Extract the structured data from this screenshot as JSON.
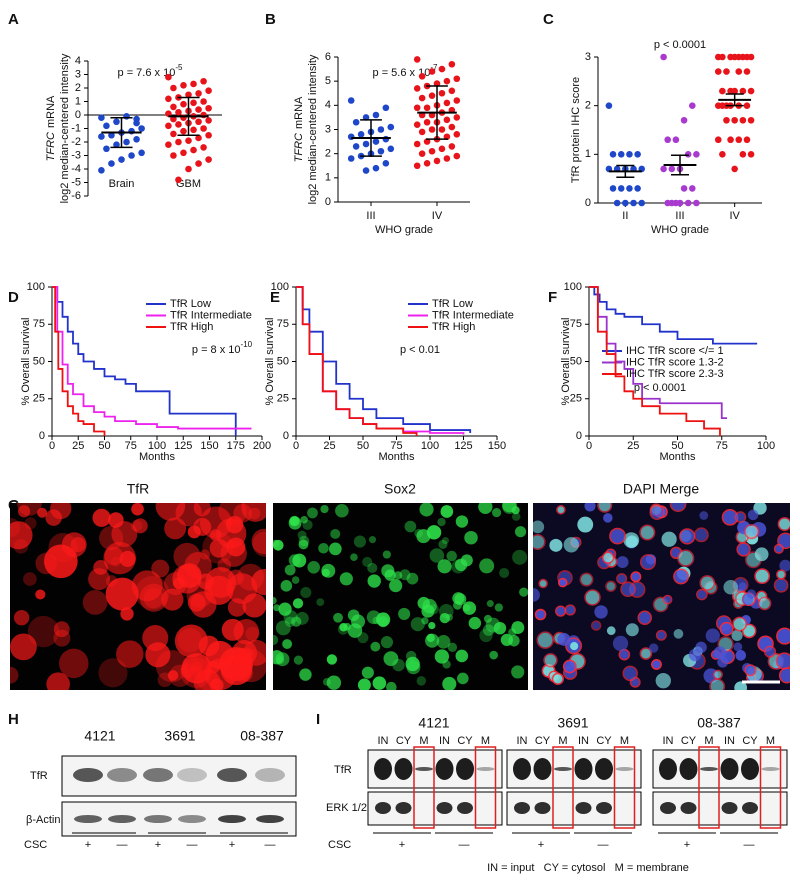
{
  "chart_data": [
    {
      "type": "dot",
      "label": "A",
      "annotation": {
        "text": "p = 7.6 x 10",
        "superscript": "-5"
      },
      "ylabel_italic": "TFRC",
      "ylabel": [
        "mRNA",
        "log2 median-centered intensity"
      ],
      "ylim": [
        -6,
        4
      ],
      "yticks": [
        -6,
        -5,
        -4,
        -3,
        -2,
        -1,
        0,
        1,
        2,
        3,
        4
      ],
      "zero_line": true,
      "groups": [
        {
          "name": "Brain",
          "color": "#1f47c9",
          "values": [
            -0.2,
            -0.3,
            -0.1,
            -0.5,
            -0.8,
            -1.0,
            -1.2,
            -1.3,
            -1.5,
            -1.6,
            -1.8,
            -2.0,
            -2.2,
            -2.5,
            -2.8,
            -3.0,
            -3.3,
            -3.6,
            -4.1,
            -0.6
          ],
          "mean": -1.3,
          "error": 1.1
        },
        {
          "name": "GBM",
          "color": "#e8141b",
          "values": [
            2.8,
            2.5,
            2.3,
            2.2,
            2.0,
            1.8,
            1.6,
            1.5,
            1.3,
            1.2,
            1.0,
            0.9,
            0.8,
            0.6,
            0.5,
            0.4,
            0.3,
            0.2,
            0.1,
            0.0,
            -0.1,
            -0.2,
            -0.3,
            -0.4,
            -0.5,
            -0.6,
            -0.7,
            -0.8,
            -1.0,
            -1.1,
            -1.2,
            -1.4,
            -1.5,
            -1.7,
            -1.9,
            -2.0,
            -2.2,
            -2.4,
            -2.6,
            -2.8,
            -3.0,
            -3.3,
            -3.6,
            -4.0,
            -4.8
          ],
          "mean": -0.1,
          "error": 1.4
        }
      ]
    },
    {
      "type": "dot",
      "label": "B",
      "annotation": {
        "text": "p = 5.6 x 10",
        "superscript": "-7"
      },
      "ylabel_italic": "TFRC",
      "ylabel": [
        "mRNA",
        "log2 median-centered intensity"
      ],
      "xlabel": "WHO grade",
      "ylim": [
        0,
        6
      ],
      "yticks": [
        0,
        1,
        2,
        3,
        4,
        5,
        6
      ],
      "groups": [
        {
          "name": "III",
          "color": "#1f47c9",
          "values": [
            4.2,
            3.9,
            3.6,
            3.5,
            3.3,
            3.1,
            3.0,
            2.9,
            2.8,
            2.7,
            2.6,
            2.5,
            2.4,
            2.3,
            2.2,
            2.1,
            2.0,
            1.9,
            1.8,
            1.6,
            1.4,
            1.3
          ],
          "mean": 2.65,
          "error": 0.75
        },
        {
          "name": "IV",
          "color": "#e8141b",
          "values": [
            5.9,
            5.7,
            5.5,
            5.4,
            5.2,
            5.1,
            5.0,
            4.9,
            4.8,
            4.7,
            4.6,
            4.5,
            4.4,
            4.3,
            4.2,
            4.1,
            4.0,
            3.9,
            3.9,
            3.8,
            3.7,
            3.6,
            3.6,
            3.5,
            3.4,
            3.3,
            3.3,
            3.2,
            3.1,
            3.0,
            3.0,
            2.9,
            2.8,
            2.7,
            2.6,
            2.5,
            2.4,
            2.3,
            2.2,
            2.1,
            2.0,
            1.9,
            1.8,
            1.7,
            1.6,
            1.5
          ],
          "mean": 3.7,
          "error": 1.1
        }
      ]
    },
    {
      "type": "dot",
      "label": "C",
      "annotation": {
        "text": "p < 0.0001"
      },
      "ylabel": [
        "TfR protein IHC score"
      ],
      "xlabel": "WHO grade",
      "ylim": [
        0,
        3
      ],
      "yticks": [
        0,
        1,
        2,
        3
      ],
      "groups": [
        {
          "name": "II",
          "color": "#1f47c9",
          "values": [
            2,
            1,
            1,
            1,
            1,
            0.7,
            0.7,
            0.7,
            0.7,
            0.7,
            0.3,
            0.3,
            0.3,
            0.3,
            0,
            0,
            0,
            0
          ],
          "mean": 0.65,
          "error": 0.12
        },
        {
          "name": "III",
          "color": "#a83ad0",
          "values": [
            3,
            2,
            1.7,
            1.3,
            1.3,
            1,
            1,
            0.7,
            0.7,
            0.7,
            0.3,
            0.3,
            0,
            0,
            0,
            0,
            0,
            0
          ],
          "mean": 0.78,
          "error": 0.2
        },
        {
          "name": "IV",
          "color": "#e8141b",
          "values": [
            3,
            3,
            3,
            3,
            3,
            3,
            3,
            3,
            2.7,
            2.7,
            2.7,
            2.7,
            2.3,
            2.3,
            2.3,
            2.3,
            2.3,
            2,
            2,
            2,
            2,
            2,
            2,
            1.7,
            1.7,
            1.7,
            1.7,
            1.3,
            1.3,
            1.3,
            1.3,
            1,
            1,
            1,
            0.7
          ],
          "mean": 2.12,
          "error": 0.12
        }
      ]
    },
    {
      "type": "survival",
      "label": "D",
      "annotation": {
        "text": "p = 8 x 10",
        "superscript": "-10"
      },
      "xlabel": "Months",
      "ylabel": [
        "% Overall survival"
      ],
      "xlim": [
        0,
        200
      ],
      "xticks": [
        0,
        25,
        50,
        75,
        100,
        125,
        150,
        175,
        200
      ],
      "ylim": [
        0,
        100
      ],
      "yticks": [
        0,
        25,
        50,
        75,
        100
      ],
      "series": [
        {
          "name": "TfR Low",
          "color": "#2233cc",
          "x": [
            0,
            5,
            10,
            15,
            20,
            25,
            30,
            40,
            50,
            60,
            70,
            80,
            100,
            112,
            175,
            175
          ],
          "values": [
            100,
            90,
            80,
            70,
            62,
            55,
            50,
            45,
            40,
            38,
            35,
            30,
            30,
            15,
            15,
            0
          ]
        },
        {
          "name": "TfR Intermediate",
          "color": "#ee22ee",
          "x": [
            0,
            5,
            10,
            15,
            20,
            30,
            40,
            50,
            60,
            80,
            100,
            120,
            150,
            175,
            190
          ],
          "values": [
            100,
            70,
            48,
            35,
            28,
            20,
            16,
            13,
            10,
            8,
            6,
            5,
            5,
            5,
            5
          ]
        },
        {
          "name": "TfR High",
          "color": "#ee1111",
          "x": [
            0,
            3,
            6,
            10,
            15,
            20,
            25,
            30,
            40,
            50
          ],
          "values": [
            100,
            70,
            45,
            30,
            20,
            15,
            10,
            8,
            3,
            0
          ]
        }
      ]
    },
    {
      "type": "survival",
      "label": "E",
      "annotation": {
        "text": "p < 0.01"
      },
      "xlabel": "Months",
      "ylabel": [
        "% Overall survival"
      ],
      "xlim": [
        0,
        150
      ],
      "xticks": [
        0,
        25,
        50,
        75,
        100,
        125,
        150
      ],
      "ylim": [
        0,
        100
      ],
      "yticks": [
        0,
        25,
        50,
        75,
        100
      ],
      "series": [
        {
          "name": "TfR Low",
          "color": "#2233cc",
          "x": [
            0,
            5,
            10,
            20,
            30,
            40,
            50,
            60,
            80,
            100,
            130
          ],
          "values": [
            100,
            85,
            70,
            50,
            35,
            25,
            18,
            12,
            8,
            4,
            2
          ]
        },
        {
          "name": "TfR Intermediate",
          "color": "#ee22ee",
          "x": [
            0,
            5,
            10,
            20,
            30,
            40,
            50,
            60,
            80,
            100,
            125
          ],
          "values": [
            100,
            75,
            55,
            30,
            18,
            12,
            8,
            5,
            3,
            2,
            1
          ]
        },
        {
          "name": "TfR High",
          "color": "#ee1111",
          "x": [
            0,
            5,
            10,
            20,
            30,
            40,
            50,
            60,
            80,
            90
          ],
          "values": [
            100,
            75,
            55,
            30,
            18,
            12,
            8,
            5,
            2,
            0
          ]
        }
      ]
    },
    {
      "type": "survival",
      "label": "F",
      "annotation": {
        "text": "p < 0.0001"
      },
      "xlabel": "Months",
      "ylabel": [
        "% Overall survival"
      ],
      "xlim": [
        0,
        100
      ],
      "xticks": [
        0,
        25,
        50,
        75,
        100
      ],
      "ylim": [
        0,
        100
      ],
      "yticks": [
        0,
        25,
        50,
        75,
        100
      ],
      "series": [
        {
          "name": "IHC TfR score </= 1",
          "color": "#2233cc",
          "x": [
            0,
            3,
            6,
            10,
            15,
            20,
            30,
            40,
            50,
            60,
            70,
            95
          ],
          "values": [
            100,
            95,
            90,
            85,
            82,
            80,
            75,
            70,
            65,
            65,
            62,
            62
          ]
        },
        {
          "name": "IHC TfR score 1.3-2",
          "color": "#9933cc",
          "x": [
            0,
            5,
            10,
            15,
            20,
            25,
            30,
            40,
            60,
            75,
            78
          ],
          "values": [
            100,
            80,
            62,
            50,
            45,
            35,
            25,
            22,
            22,
            12,
            12
          ]
        },
        {
          "name": "IHC TfR score 2.3-3",
          "color": "#ee1111",
          "x": [
            0,
            5,
            10,
            15,
            20,
            25,
            30,
            40,
            55,
            65,
            72,
            74
          ],
          "values": [
            100,
            70,
            55,
            40,
            30,
            25,
            20,
            15,
            10,
            5,
            5,
            0
          ]
        }
      ]
    }
  ],
  "images": {
    "label": "G",
    "titles": [
      "TfR",
      "Sox2",
      "DAPI Merge"
    ]
  },
  "blot_h": {
    "label": "H",
    "cell_lines": [
      "4121",
      "3691",
      "08-387"
    ],
    "rows": [
      "TfR",
      "β-Actin"
    ],
    "csc_label": "CSC",
    "csc_signs": [
      "+",
      "—"
    ]
  },
  "blot_i": {
    "label": "I",
    "cell_lines": [
      "4121",
      "3691",
      "08-387"
    ],
    "lanes": [
      "IN",
      "CY",
      "M",
      "IN",
      "CY",
      "M"
    ],
    "rows": [
      "TfR",
      "ERK 1/2"
    ],
    "csc_label": "CSC",
    "csc_signs": [
      "+",
      "—"
    ],
    "footnote": "IN = input   CY = cytosol   M = membrane"
  }
}
